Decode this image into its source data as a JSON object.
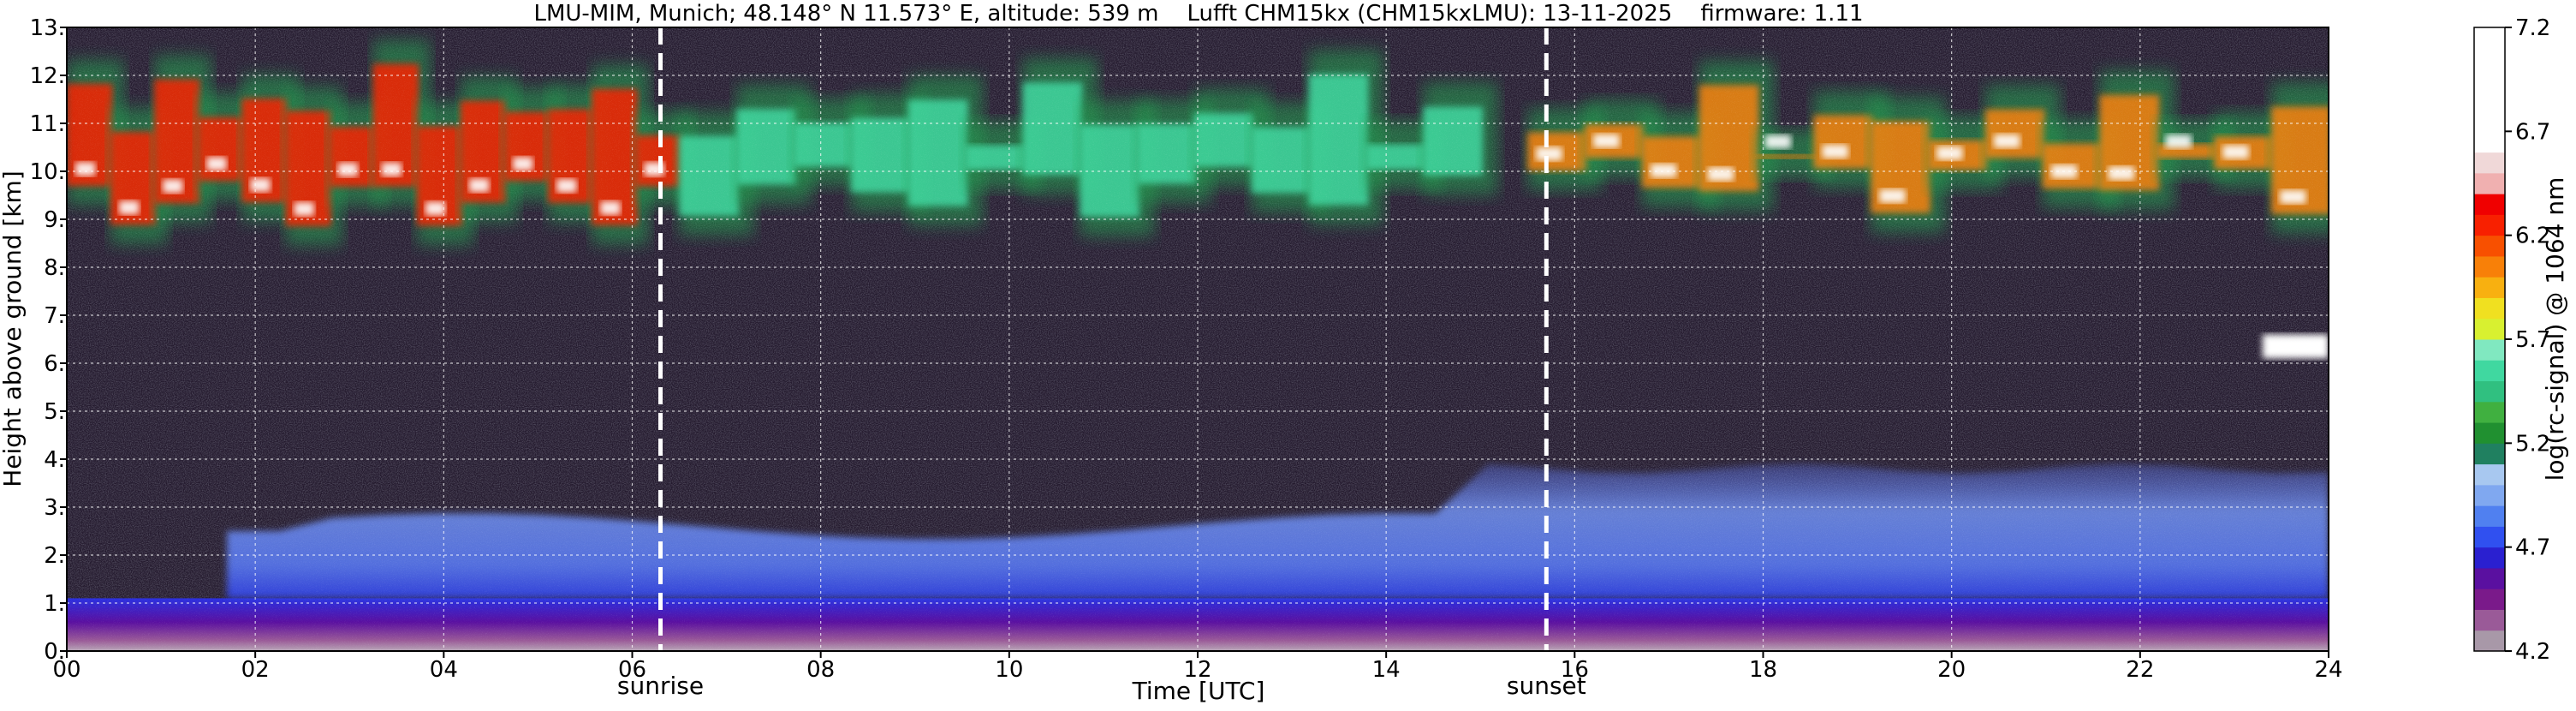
{
  "chart_data": {
    "type": "heatmap",
    "title": "LMU-MIM, Munich; 48.148° N 11.573° E, altitude: 539 m    Lufft CHM15kx (CHM15kxLMU): 13-11-2025    firmware: 1.11",
    "xlabel": "Time [UTC]",
    "ylabel": "Height above ground [km]",
    "xlim": [
      0,
      24
    ],
    "ylim": [
      0,
      13
    ],
    "grid": true,
    "x_ticks": [
      "00",
      "02",
      "04",
      "06",
      "08",
      "10",
      "12",
      "14",
      "16",
      "18",
      "20",
      "22",
      "24"
    ],
    "x_tick_values": [
      0,
      2,
      4,
      6,
      8,
      10,
      12,
      14,
      16,
      18,
      20,
      22,
      24
    ],
    "y_ticks": [
      "0.",
      "1.",
      "2.",
      "3.",
      "4.",
      "5.",
      "6.",
      "7.",
      "8.",
      "9.",
      "10.",
      "11.",
      "12.",
      "13."
    ],
    "y_tick_values": [
      0,
      1,
      2,
      3,
      4,
      5,
      6,
      7,
      8,
      9,
      10,
      11,
      12,
      13
    ],
    "annotations": [
      {
        "label": "sunrise",
        "x": 6.3
      },
      {
        "label": "sunset",
        "x": 15.7
      }
    ],
    "colorbar": {
      "label": "log(rc-signal) @ 1064 nm",
      "range": [
        4.2,
        7.2
      ],
      "tick_labels": [
        "4.2",
        "4.7",
        "5.2",
        "5.7",
        "6.2",
        "6.7",
        "7.2"
      ],
      "tick_values": [
        4.2,
        4.7,
        5.2,
        5.7,
        6.2,
        6.7,
        7.2
      ],
      "colors": [
        "#a898a8",
        "#9a5a98",
        "#7a1a8a",
        "#5a10a0",
        "#2a20d0",
        "#3050f0",
        "#5080f0",
        "#80a8f0",
        "#a8c8f0",
        "#208060",
        "#209030",
        "#40b040",
        "#30c080",
        "#40d8a0",
        "#80e8c0",
        "#d8f030",
        "#f0e020",
        "#f8b010",
        "#f88008",
        "#f85000",
        "#f82000",
        "#f00000",
        "#f0b0b0",
        "#f0d8d8",
        "#ffffff",
        "#ffffff",
        "#ffffff",
        "#ffffff",
        "#ffffff",
        "#ffffff"
      ]
    },
    "features": [
      {
        "kind": "boundary-layer",
        "x_range": [
          0,
          24
        ],
        "height_range": [
          0,
          1.1
        ],
        "level": 4.6
      },
      {
        "kind": "residual-layer",
        "x_range": [
          1.7,
          24
        ],
        "height_range": [
          1.1,
          3.8
        ],
        "level": 4.8
      },
      {
        "kind": "cirrus",
        "x_range": [
          0,
          6.5
        ],
        "height_range": [
          8.2,
          12.7
        ],
        "level": 6.3
      },
      {
        "kind": "cirrus",
        "x_range": [
          6.5,
          15
        ],
        "height_range": [
          8.5,
          12.5
        ],
        "level": 5.6
      },
      {
        "kind": "cirrus",
        "x_range": [
          15.5,
          24
        ],
        "height_range": [
          8.7,
          12.3
        ],
        "level": 6.1
      },
      {
        "kind": "cloud-patch",
        "x_range": [
          23.3,
          24
        ],
        "height_range": [
          6.1,
          6.6
        ],
        "level": 7.0
      }
    ]
  }
}
